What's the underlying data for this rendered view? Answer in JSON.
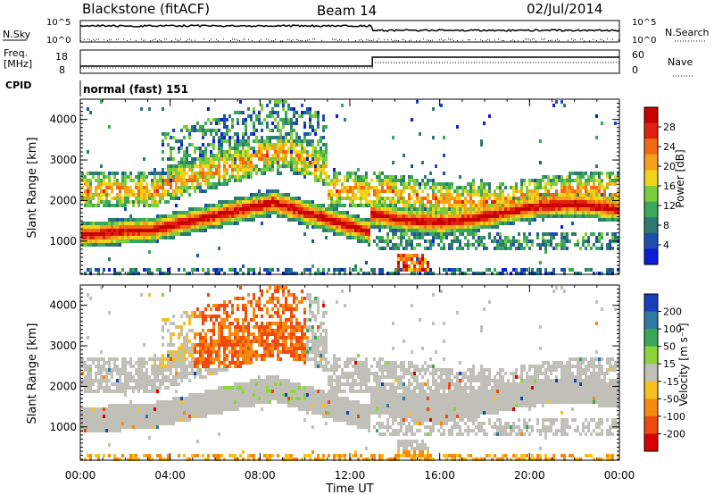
{
  "header": {
    "title": "Blackstone (fitACF)",
    "beam": "Beam 14",
    "date": "02/Jul/2014"
  },
  "status_panels": {
    "nsky_label": "N.Sky",
    "nsearch_label": "N.Search",
    "nsky_ticks": [
      "10^5",
      "10^0"
    ],
    "nsearch_ticks": [
      "10^5",
      "10^0"
    ],
    "freq_label_1": "Freq.",
    "freq_label_2": "[MHz]",
    "freq_ticks": [
      "18",
      "8"
    ],
    "nave_label": "Nave",
    "nave_ticks": [
      "60",
      "0"
    ],
    "cpid_label": "CPID",
    "cpid_value": "normal (fast) 151",
    "freq_switch_hour": 13.0
  },
  "chart_data": [
    {
      "type": "heatmap",
      "name": "power",
      "ylabel": "Slant Range [km]",
      "xlim": [
        0,
        24
      ],
      "ylim": [
        180,
        4500
      ],
      "yticks": [
        "1000",
        "2000",
        "3000",
        "4000"
      ],
      "colorbar": {
        "label": "Power [dB]",
        "ticks": [
          "4",
          "8",
          "12",
          "16",
          "20",
          "24",
          "28"
        ],
        "colors": [
          "#0b1fd6",
          "#1e4fb0",
          "#2f7a70",
          "#3aa85a",
          "#7ccd3c",
          "#f0d41a",
          "#f5a21a",
          "#f26a10",
          "#e02010",
          "#c80000"
        ]
      }
    },
    {
      "type": "heatmap",
      "name": "velocity",
      "ylabel": "Slant Range [km]",
      "xlim": [
        0,
        24
      ],
      "ylim": [
        180,
        4500
      ],
      "yticks": [
        "1000",
        "2000",
        "3000",
        "4000"
      ],
      "colorbar": {
        "label": "Velocity [m s⁻¹]",
        "ticks": [
          "200",
          "100",
          "50",
          "15",
          "-15",
          "-50",
          "-100",
          "-200"
        ],
        "colors": [
          "#1a3fb8",
          "#2e7aa0",
          "#3aa65a",
          "#8bd43a",
          "#c0c0b8",
          "#f5c020",
          "#f58a10",
          "#ef4a10",
          "#d80000"
        ]
      }
    }
  ],
  "xaxis": {
    "label": "Time UT",
    "ticks": [
      "00:00",
      "04:00",
      "08:00",
      "12:00",
      "16:00",
      "20:00",
      "00:00"
    ]
  }
}
